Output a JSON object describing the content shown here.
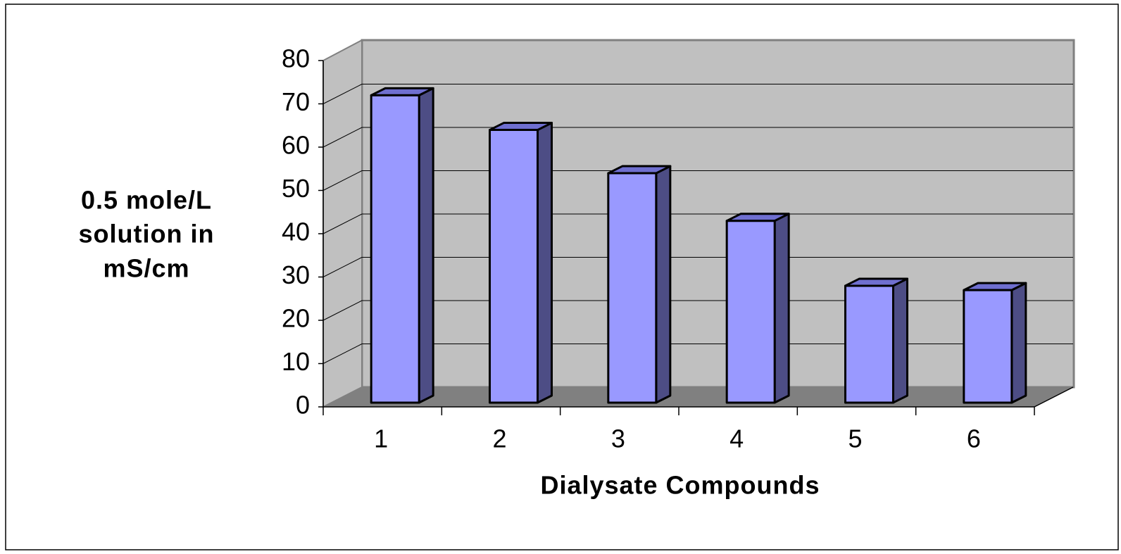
{
  "chart_data": {
    "type": "bar3d",
    "ylabel": [
      "0.5 mole/L",
      "solution in",
      "mS/cm"
    ],
    "xlabel": "Dialysate Compounds",
    "categories": [
      "1",
      "2",
      "3",
      "4",
      "5",
      "6"
    ],
    "values": [
      71,
      63,
      53,
      42,
      27,
      26
    ],
    "color": "#9999ff",
    "ylim": [
      0,
      80
    ],
    "yticks": [
      0,
      10,
      20,
      30,
      40,
      50,
      60,
      70,
      80
    ],
    "grid": true
  }
}
